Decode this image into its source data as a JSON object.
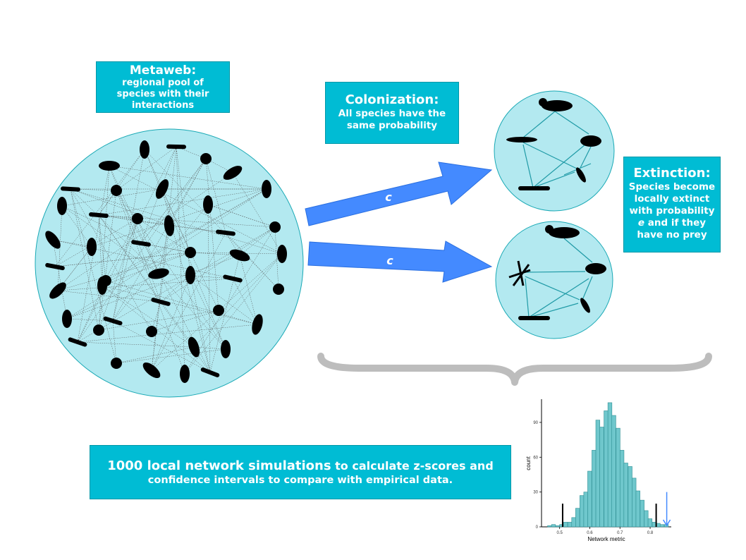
{
  "metaweb": {
    "title": "Metaweb:",
    "subtitle_lines": [
      "regional pool of",
      "species with their",
      "interactions"
    ]
  },
  "colonization": {
    "title": "Colonization:",
    "text_lines": [
      "All species have the",
      "same probability"
    ],
    "arrow_label": "c"
  },
  "extinction": {
    "title": "Extinction:",
    "text_lines": [
      "Species become",
      "locally extinct",
      "with probability"
    ],
    "param": "e",
    "text_after_param": " and if they",
    "last_line": "have no prey"
  },
  "simulations": {
    "highlight": "1000 local network simulations",
    "text_rest": " to calculate z-scores and",
    "line2": "confidence intervals to compare with empirical data."
  },
  "colors": {
    "pool_fill": "#b3e9f0",
    "box_fill": "#00bcd4",
    "arrow_blue": "#448aff",
    "bar_fill": "#6fc7cc",
    "brace_grey": "#bdbdbd"
  },
  "chart_data": {
    "type": "bar",
    "xlabel": "Network metric",
    "ylabel": "count",
    "x_ticks": [
      "0.5",
      "0.6",
      "0.7",
      "0.8"
    ],
    "y_ticks": [
      "0",
      "30",
      "60",
      "90"
    ],
    "xlim": [
      0.44,
      0.87
    ],
    "ylim": [
      0,
      110
    ],
    "bin_width": 0.0133,
    "bin_starts": [
      0.46,
      0.473,
      0.487,
      0.5,
      0.513,
      0.527,
      0.54,
      0.553,
      0.567,
      0.58,
      0.593,
      0.607,
      0.62,
      0.633,
      0.647,
      0.66,
      0.673,
      0.687,
      0.7,
      0.713,
      0.727,
      0.74,
      0.753,
      0.767,
      0.78,
      0.793,
      0.807,
      0.82,
      0.833,
      0.847
    ],
    "counts": [
      1,
      2,
      1,
      2,
      4,
      4,
      8,
      16,
      27,
      30,
      48,
      66,
      92,
      86,
      100,
      107,
      96,
      85,
      66,
      55,
      52,
      42,
      31,
      23,
      14,
      7,
      4,
      3,
      2,
      2
    ],
    "ci_lines": [
      0.51,
      0.82
    ],
    "empirical_value": 0.855
  }
}
